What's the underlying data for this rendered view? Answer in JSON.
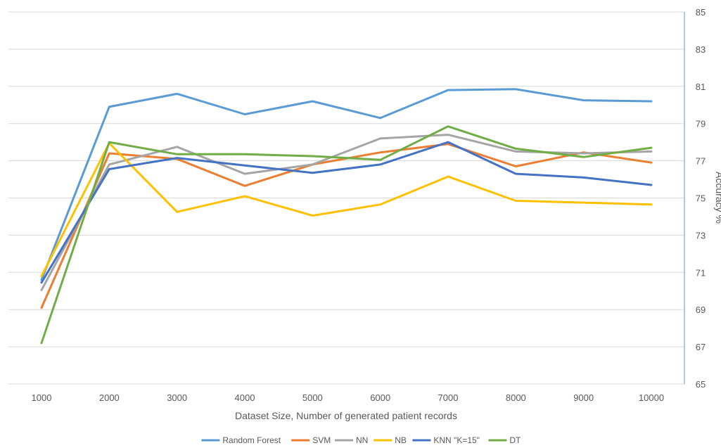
{
  "chart_data": {
    "type": "line",
    "title": "",
    "xlabel": "Dataset Size, Number of generated patient records",
    "ylabel": "Accuracy %",
    "x": [
      1000,
      2000,
      3000,
      4000,
      5000,
      6000,
      7000,
      8000,
      9000,
      10000
    ],
    "ylim": [
      65,
      85
    ],
    "yticks": [
      65,
      67,
      69,
      71,
      73,
      75,
      77,
      79,
      81,
      83,
      85
    ],
    "grid": true,
    "y_axis_side": "right",
    "legend_position": "bottom",
    "series": [
      {
        "name": "Random Forest",
        "color": "#5b9bd5",
        "values": [
          70.6,
          79.9,
          80.6,
          79.5,
          80.2,
          79.3,
          80.8,
          80.85,
          80.25,
          80.2
        ]
      },
      {
        "name": "SVM",
        "color": "#ed7d31",
        "values": [
          69.1,
          77.4,
          77.1,
          75.65,
          76.8,
          77.45,
          77.9,
          76.7,
          77.45,
          76.9
        ]
      },
      {
        "name": "NN",
        "color": "#a5a5a5",
        "values": [
          70.05,
          76.8,
          77.75,
          76.3,
          76.8,
          78.2,
          78.4,
          77.5,
          77.4,
          77.5
        ]
      },
      {
        "name": "NB",
        "color": "#ffc000",
        "values": [
          70.8,
          77.95,
          74.25,
          75.1,
          74.05,
          74.65,
          76.15,
          74.85,
          74.75,
          74.65
        ]
      },
      {
        "name": "KNN \"K=15\"",
        "color": "#4472c4",
        "values": [
          70.45,
          76.55,
          77.15,
          76.75,
          76.35,
          76.8,
          78.0,
          76.3,
          76.1,
          75.7
        ]
      },
      {
        "name": "DT",
        "color": "#70ad47",
        "values": [
          67.2,
          78.0,
          77.35,
          77.35,
          77.25,
          77.05,
          78.85,
          77.65,
          77.2,
          77.7
        ]
      }
    ]
  }
}
